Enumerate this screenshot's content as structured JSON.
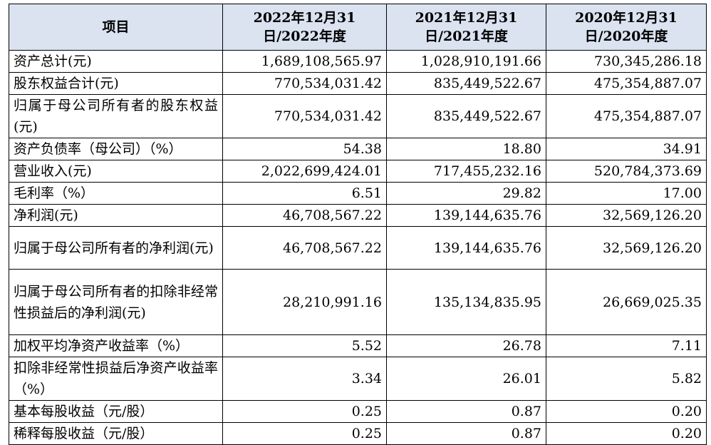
{
  "table": {
    "headers": [
      "项目",
      "2022年12月31日/2022年度",
      "2021年12月31日/2021年度",
      "2020年12月31日/2020年度"
    ],
    "rows": [
      {
        "label": "资产总计(元)",
        "values": [
          "1,689,108,565.97",
          "1,028,910,191.66",
          "730,345,286.18"
        ]
      },
      {
        "label": "股东权益合计(元)",
        "values": [
          "770,534,031.42",
          "835,449,522.67",
          "475,354,887.07"
        ]
      },
      {
        "label": "归属于母公司所有者的股东权益(元)",
        "values": [
          "770,534,031.42",
          "835,449,522.67",
          "475,354,887.07"
        ]
      },
      {
        "label": "资产负债率（母公司）（%）",
        "values": [
          "54.38",
          "18.80",
          "34.91"
        ]
      },
      {
        "label": "营业收入(元)",
        "values": [
          "2,022,699,424.01",
          "717,455,232.16",
          "520,784,373.69"
        ]
      },
      {
        "label": "毛利率（%）",
        "values": [
          "6.51",
          "29.82",
          "17.00"
        ]
      },
      {
        "label": "净利润(元)",
        "values": [
          "46,708,567.22",
          "139,144,635.76",
          "32,569,126.20"
        ]
      },
      {
        "label": "归属于母公司所有者的净利润(元)",
        "values": [
          "46,708,567.22",
          "139,144,635.76",
          "32,569,126.20"
        ]
      },
      {
        "label": "归属于母公司所有者的扣除非经常性损益后的净利润(元)",
        "values": [
          "28,210,991.16",
          "135,134,835.95",
          "26,669,025.35"
        ]
      },
      {
        "label": "加权平均净资产收益率（%）",
        "values": [
          "5.52",
          "26.78",
          "7.11"
        ]
      },
      {
        "label": "扣除非经常性损益后净资产收益率（%）",
        "values": [
          "3.34",
          "26.01",
          "5.82"
        ]
      },
      {
        "label": "基本每股收益（元/股）",
        "values": [
          "0.25",
          "0.87",
          "0.20"
        ]
      },
      {
        "label": "稀释每股收益（元/股）",
        "values": [
          "0.25",
          "0.87",
          "0.20"
        ]
      }
    ]
  }
}
